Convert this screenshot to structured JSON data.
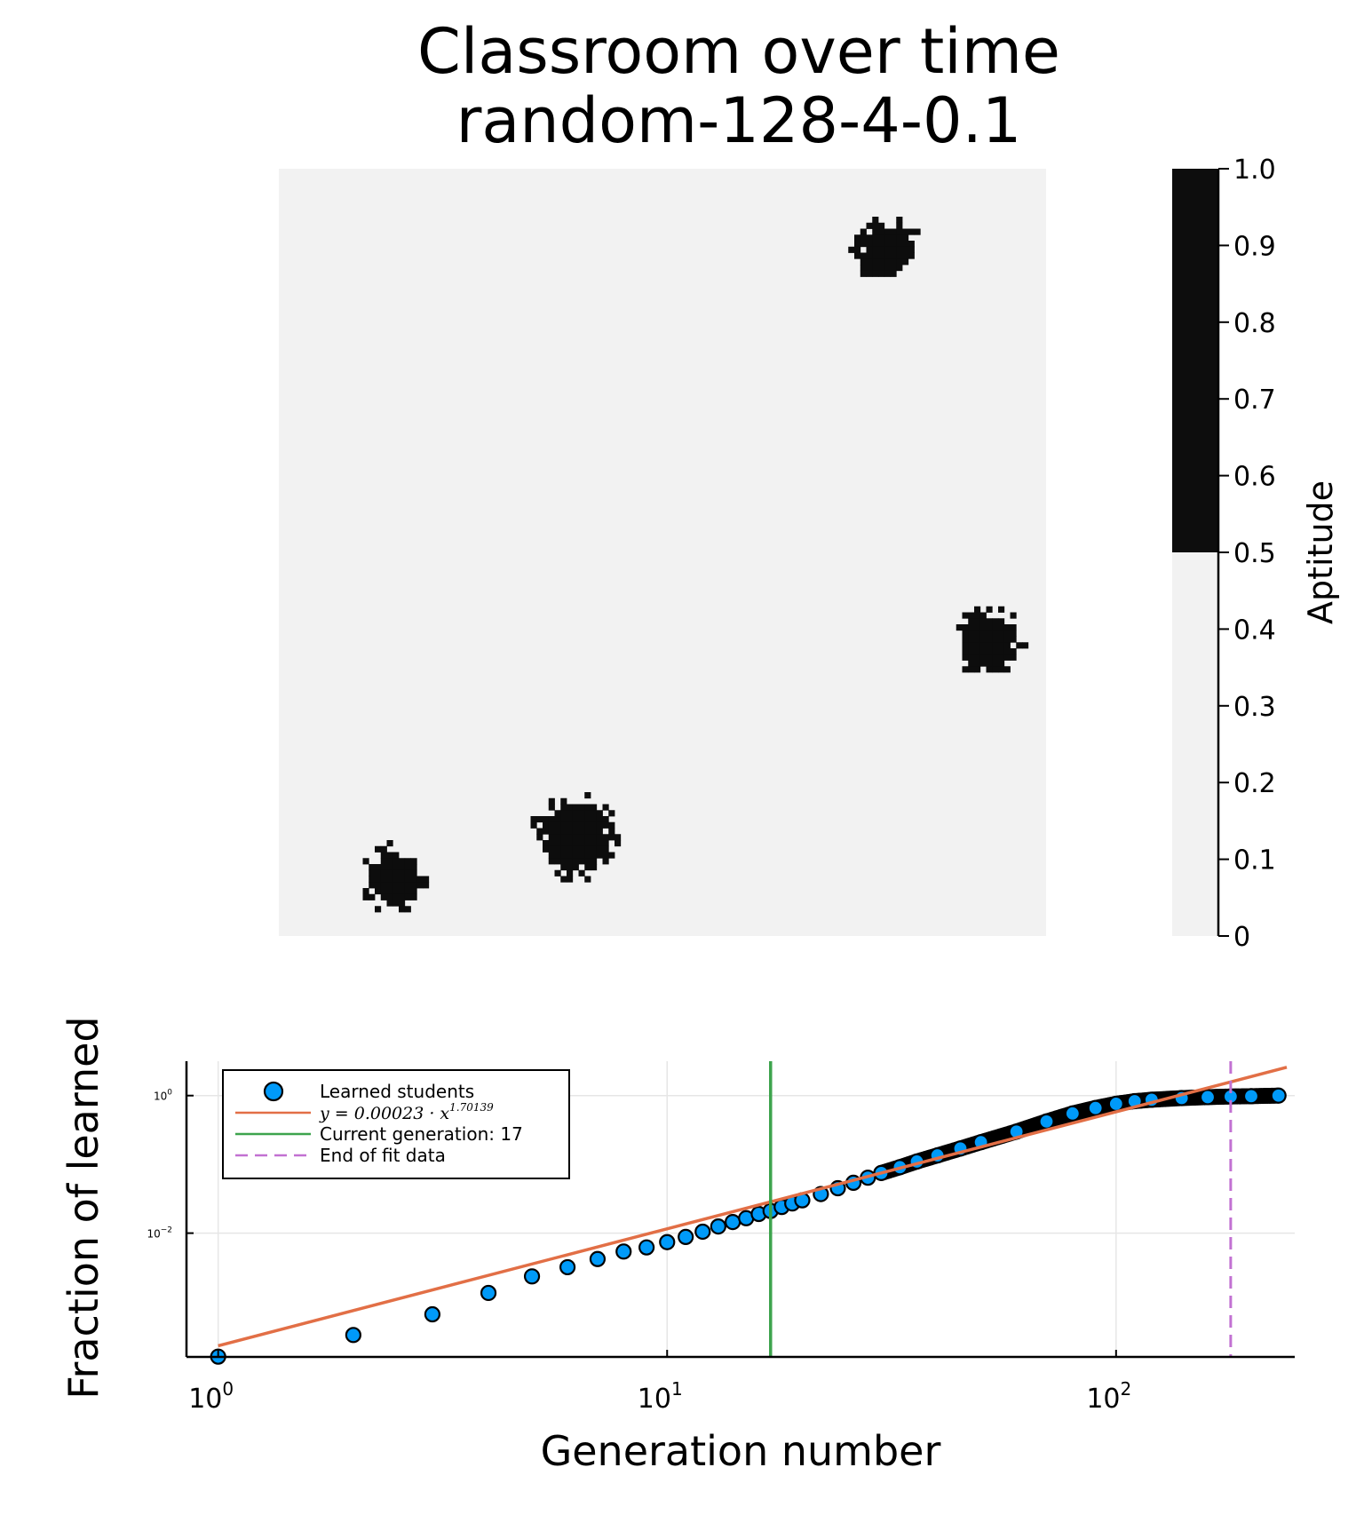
{
  "title_line1": "Classroom over time",
  "title_line2": "random-128-4-0.1",
  "colors": {
    "background_cell": "#f2f2f2",
    "learned_cell": "#0d0d0d",
    "scatter": "#009af9",
    "fit": "#e26f46",
    "current": "#3da44d",
    "end_fit": "#c271d2",
    "grid": "#e6e6e6"
  },
  "chart_data": [
    {
      "type": "heatmap",
      "title": "Classroom over time\nrandom-128-4-0.1",
      "grid_size": [
        128,
        128
      ],
      "colorbar": {
        "label": "Aptitude",
        "range": [
          0,
          1
        ],
        "ticks": [
          "0",
          "0.1",
          "0.2",
          "0.3",
          "0.4",
          "0.5",
          "0.6",
          "0.7",
          "0.8",
          "0.9",
          "1.0"
        ],
        "threshold": 0.5
      },
      "clusters": [
        {
          "cx": 101,
          "cy": 13,
          "r": 4.8
        },
        {
          "cx": 118,
          "cy": 78,
          "r": 5.2
        },
        {
          "cx": 49,
          "cy": 111,
          "r": 6.2
        },
        {
          "cx": 19,
          "cy": 118,
          "r": 4.6
        }
      ]
    },
    {
      "type": "scatter",
      "xlabel": "Generation number",
      "ylabel": "Fraction of learned",
      "xscale": "log10",
      "yscale": "log10",
      "xlim": [
        0.85,
        250
      ],
      "ylim_log10": [
        -3.8,
        0.5
      ],
      "xticks": [
        {
          "value": 1,
          "base": "10",
          "exp": "0"
        },
        {
          "value": 10,
          "base": "10",
          "exp": "1"
        },
        {
          "value": 100,
          "base": "10",
          "exp": "2"
        }
      ],
      "yticks": [
        {
          "value": 1,
          "base": "10",
          "exp": "0"
        },
        {
          "value": 0.01,
          "base": "10",
          "exp": "−2"
        }
      ],
      "grid": true,
      "legend_position": "top-left",
      "series": [
        {
          "name": "Learned students",
          "kind": "scatter",
          "x": [
            1,
            2,
            3,
            4,
            5,
            6,
            7,
            8,
            9,
            10,
            11,
            12,
            13,
            14,
            15,
            16,
            17,
            18,
            19,
            20,
            22,
            24,
            26,
            28,
            30,
            33,
            36,
            40,
            45,
            50,
            60,
            70,
            80,
            90,
            100,
            110,
            120,
            140,
            160,
            180,
            200,
            230
          ],
          "y": [
            0.00016,
            0.00033,
            0.00066,
            0.00135,
            0.00235,
            0.0032,
            0.0042,
            0.0054,
            0.0062,
            0.0074,
            0.0088,
            0.0105,
            0.0125,
            0.0145,
            0.0165,
            0.019,
            0.021,
            0.024,
            0.027,
            0.03,
            0.037,
            0.045,
            0.054,
            0.064,
            0.075,
            0.091,
            0.11,
            0.135,
            0.17,
            0.21,
            0.3,
            0.42,
            0.55,
            0.66,
            0.76,
            0.83,
            0.87,
            0.92,
            0.95,
            0.97,
            0.98,
            1.0
          ]
        },
        {
          "name": "y = 0.00023 · x^1.70139",
          "label_formula": "y = 0.00023 · x",
          "label_exponent": "1.70139",
          "kind": "line",
          "coef": 0.00023,
          "power": 1.70139,
          "x_range": [
            1,
            240
          ]
        },
        {
          "name": "Current generation: 17",
          "kind": "vline",
          "x": 17
        },
        {
          "name": "End of fit data",
          "kind": "vline-dashed",
          "x": 180
        }
      ]
    }
  ]
}
